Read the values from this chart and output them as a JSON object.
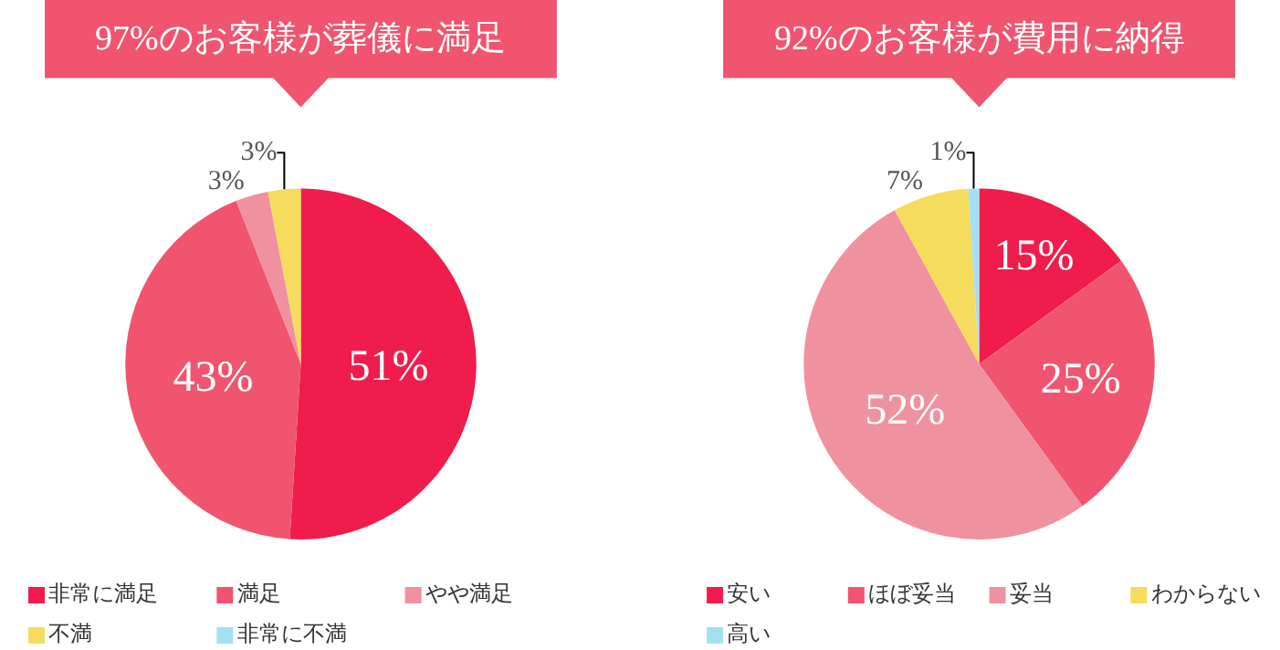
{
  "chart_data": [
    {
      "type": "pie",
      "title": "97%のお客様が葬儀に満足",
      "categories": [
        "非常に満足",
        "満足",
        "やや満足",
        "不満",
        "非常に不満"
      ],
      "values": [
        51,
        43,
        3,
        3,
        0
      ],
      "colors": [
        "#f01c4c",
        "#f0546f",
        "#f0919f",
        "#f5dc5c",
        "#a3e1f2"
      ],
      "value_labels": [
        "51%",
        "43%",
        "3%",
        "3%",
        null
      ],
      "legend": "bottom"
    },
    {
      "type": "pie",
      "title": "92%のお客様が費用に納得",
      "categories": [
        "安い",
        "ほぼ妥当",
        "妥当",
        "わからない",
        "高い"
      ],
      "values": [
        15,
        25,
        52,
        7,
        1
      ],
      "colors": [
        "#f01c4c",
        "#f0546f",
        "#f0919f",
        "#f5dc5c",
        "#a3e1f2"
      ],
      "value_labels": [
        "15%",
        "25%",
        "52%",
        "7%",
        "1%"
      ],
      "legend": "bottom"
    }
  ]
}
